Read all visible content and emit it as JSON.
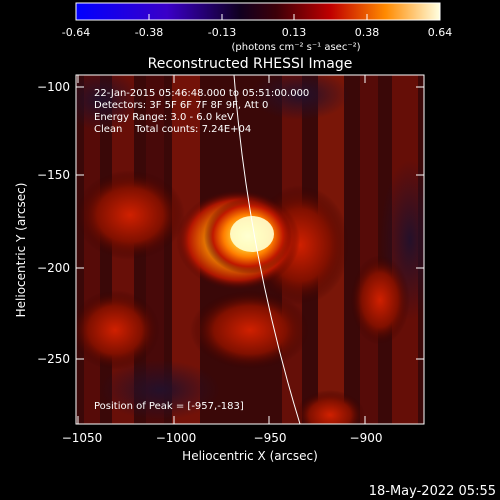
{
  "title": "Reconstructed RHESSI Image",
  "colorbar": {
    "ticks": [
      "-0.64",
      "-0.38",
      "-0.13",
      "0.13",
      "0.38",
      "0.64"
    ],
    "units": "(photons cm⁻² s⁻¹ asec⁻²)"
  },
  "annotations": {
    "time_range": "22-Jan-2015 05:46:48.000 to 05:51:00.000",
    "detectors": "Detectors: 3F 5F 6F 7F 8F 9F, Att 0",
    "energy": "Energy Range: 3.0 - 6.0 keV",
    "clean": "Clean    Total counts: 7.24E+04",
    "peak": "Position of Peak = [-957,-183]"
  },
  "axes": {
    "xlabel": "Heliocentric X (arcsec)",
    "ylabel": "Heliocentric Y (arcsec)",
    "x_ticks": [
      "−1050",
      "−1000",
      "−950",
      "−900"
    ],
    "y_ticks": [
      "−100",
      "−150",
      "−200",
      "−250"
    ]
  },
  "footer": {
    "timestamp": "18-May-2022 05:55"
  }
}
